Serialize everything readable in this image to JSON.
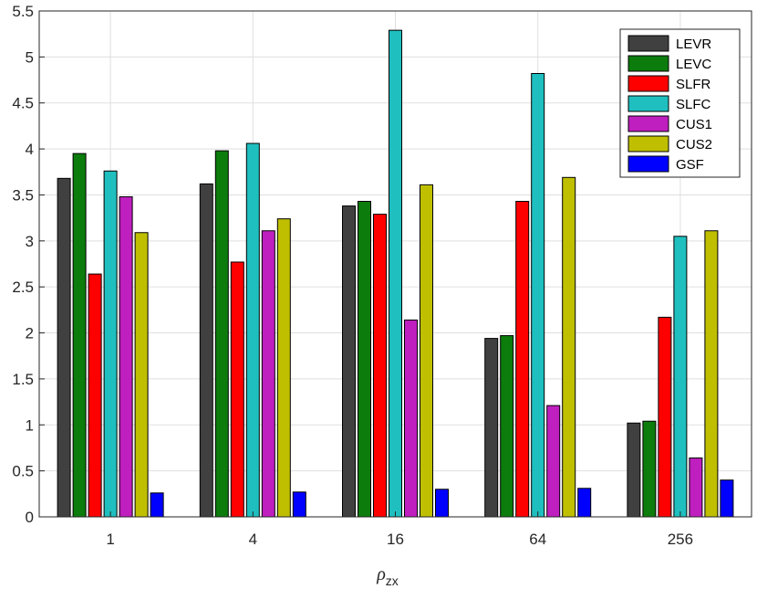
{
  "chart_data": {
    "type": "bar",
    "title": "",
    "xlabel": "ρ",
    "xlabel_subscript": "zx",
    "ylabel": "",
    "ylim": [
      0,
      5.5
    ],
    "yticks": [
      "0",
      "0.5",
      "1",
      "1.5",
      "2",
      "2.5",
      "3",
      "3.5",
      "4",
      "4.5",
      "5",
      "5.5"
    ],
    "grid": true,
    "legend_position": "top-right",
    "categories": [
      "1",
      "4",
      "16",
      "64",
      "256"
    ],
    "series": [
      {
        "name": "LEVR",
        "color": "#404040",
        "values": [
          3.68,
          3.62,
          3.38,
          1.94,
          1.02
        ]
      },
      {
        "name": "LEVC",
        "color": "#0c7c0c",
        "values": [
          3.95,
          3.98,
          3.43,
          1.97,
          1.04
        ]
      },
      {
        "name": "SLFR",
        "color": "#ff0000",
        "values": [
          2.64,
          2.77,
          3.29,
          3.43,
          2.17
        ]
      },
      {
        "name": "SLFC",
        "color": "#1fbfbf",
        "values": [
          3.76,
          4.06,
          5.29,
          4.82,
          3.05
        ]
      },
      {
        "name": "CUS1",
        "color": "#bf1fbf",
        "values": [
          3.48,
          3.11,
          2.14,
          1.21,
          0.64
        ]
      },
      {
        "name": "CUS2",
        "color": "#bfbf00",
        "values": [
          3.09,
          3.24,
          3.61,
          3.69,
          3.11
        ]
      },
      {
        "name": "GSF",
        "color": "#0000ff",
        "values": [
          0.26,
          0.27,
          0.3,
          0.31,
          0.4
        ]
      }
    ]
  }
}
